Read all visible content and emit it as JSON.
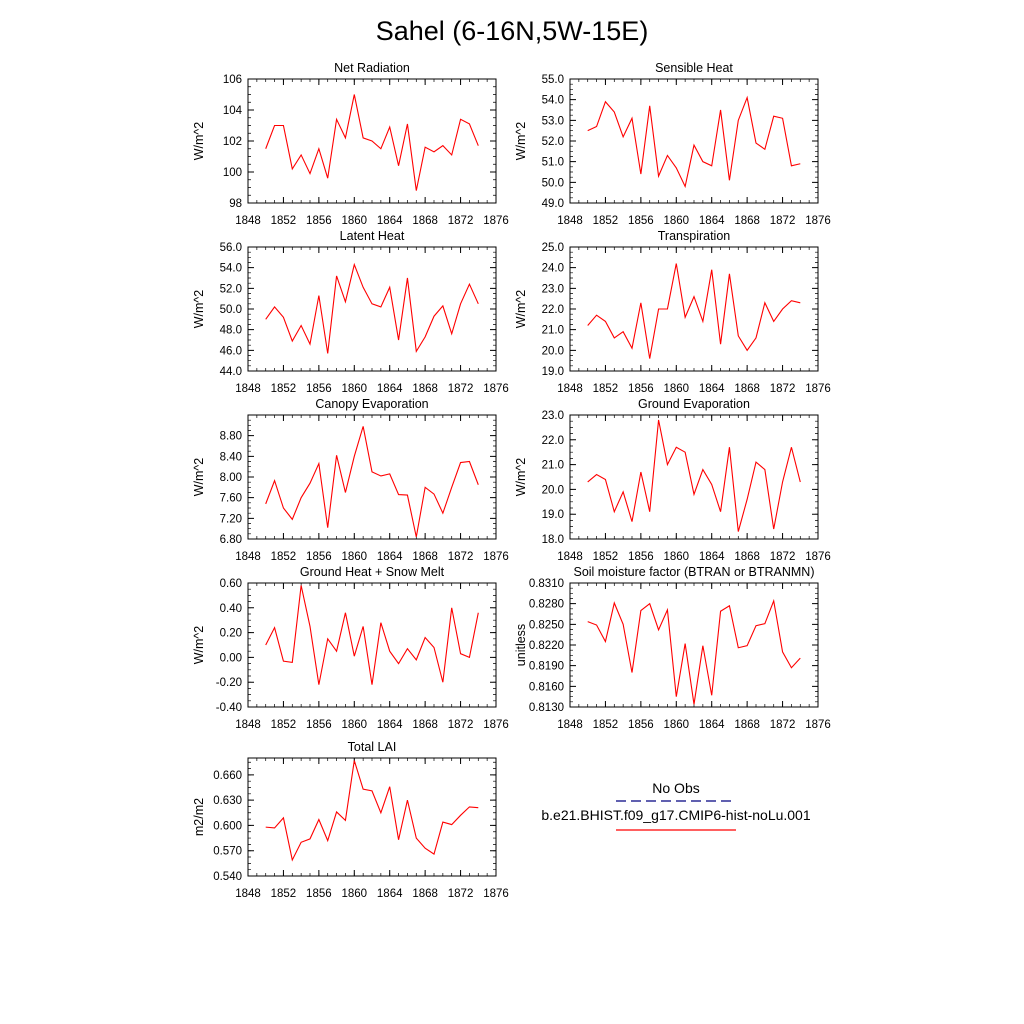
{
  "figure": {
    "title": "Sahel (6-16N,5W-15E)",
    "legend": {
      "obs_label": "No Obs",
      "obs_color": "#000080",
      "model_label": "b.e21.BHIST.f09_g17.CMIP6-hist-noLu.001",
      "model_color": "#ff0000"
    }
  },
  "chart_data": [
    {
      "type": "line",
      "title": "Net Radiation",
      "ylabel": "W/m^2",
      "xlim": [
        1848,
        1876
      ],
      "xticks": [
        1848,
        1852,
        1856,
        1860,
        1864,
        1868,
        1872,
        1876
      ],
      "ylim": [
        98,
        106
      ],
      "yticks": [
        "98",
        "100",
        "102",
        "104",
        "106"
      ],
      "series": [
        {
          "color": "#ff0000",
          "x": [
            1850,
            1851,
            1852,
            1853,
            1854,
            1855,
            1856,
            1857,
            1858,
            1859,
            1860,
            1861,
            1862,
            1863,
            1864,
            1865,
            1866,
            1867,
            1868,
            1869,
            1870,
            1871,
            1872,
            1873,
            1874
          ],
          "y": [
            101.5,
            103.0,
            103.0,
            100.2,
            101.1,
            99.9,
            101.5,
            99.6,
            103.4,
            102.2,
            105.0,
            102.2,
            102.0,
            101.5,
            102.9,
            100.4,
            103.1,
            98.8,
            101.6,
            101.3,
            101.7,
            101.1,
            103.4,
            103.1,
            101.7
          ]
        }
      ]
    },
    {
      "type": "line",
      "title": "Sensible Heat",
      "ylabel": "W/m^2",
      "xlim": [
        1848,
        1876
      ],
      "xticks": [
        1848,
        1852,
        1856,
        1860,
        1864,
        1868,
        1872,
        1876
      ],
      "ylim": [
        49,
        55
      ],
      "yticks": [
        "49.0",
        "50.0",
        "51.0",
        "52.0",
        "53.0",
        "54.0",
        "55.0"
      ],
      "series": [
        {
          "color": "#ff0000",
          "x": [
            1850,
            1851,
            1852,
            1853,
            1854,
            1855,
            1856,
            1857,
            1858,
            1859,
            1860,
            1861,
            1862,
            1863,
            1864,
            1865,
            1866,
            1867,
            1868,
            1869,
            1870,
            1871,
            1872,
            1873,
            1874
          ],
          "y": [
            52.5,
            52.7,
            53.9,
            53.4,
            52.2,
            53.1,
            50.4,
            53.7,
            50.3,
            51.3,
            50.7,
            49.8,
            51.8,
            51.0,
            50.8,
            53.5,
            50.1,
            53.0,
            54.1,
            51.9,
            51.6,
            53.2,
            53.1,
            50.8,
            50.9
          ]
        }
      ]
    },
    {
      "type": "line",
      "title": "Latent Heat",
      "ylabel": "W/m^2",
      "xlim": [
        1848,
        1876
      ],
      "xticks": [
        1848,
        1852,
        1856,
        1860,
        1864,
        1868,
        1872,
        1876
      ],
      "ylim": [
        44,
        56
      ],
      "yticks": [
        "44.0",
        "46.0",
        "48.0",
        "50.0",
        "52.0",
        "54.0",
        "56.0"
      ],
      "series": [
        {
          "color": "#ff0000",
          "x": [
            1850,
            1851,
            1852,
            1853,
            1854,
            1855,
            1856,
            1857,
            1858,
            1859,
            1860,
            1861,
            1862,
            1863,
            1864,
            1865,
            1866,
            1867,
            1868,
            1869,
            1870,
            1871,
            1872,
            1873,
            1874
          ],
          "y": [
            49.0,
            50.2,
            49.2,
            46.9,
            48.4,
            46.6,
            51.3,
            45.7,
            53.2,
            50.7,
            54.3,
            52.1,
            50.5,
            50.2,
            52.1,
            47.0,
            53.0,
            45.9,
            47.3,
            49.3,
            50.3,
            47.6,
            50.5,
            52.4,
            50.5
          ]
        }
      ]
    },
    {
      "type": "line",
      "title": "Transpiration",
      "ylabel": "W/m^2",
      "xlim": [
        1848,
        1876
      ],
      "xticks": [
        1848,
        1852,
        1856,
        1860,
        1864,
        1868,
        1872,
        1876
      ],
      "ylim": [
        19,
        25
      ],
      "yticks": [
        "19.0",
        "20.0",
        "21.0",
        "22.0",
        "23.0",
        "24.0",
        "25.0"
      ],
      "series": [
        {
          "color": "#ff0000",
          "x": [
            1850,
            1851,
            1852,
            1853,
            1854,
            1855,
            1856,
            1857,
            1858,
            1859,
            1860,
            1861,
            1862,
            1863,
            1864,
            1865,
            1866,
            1867,
            1868,
            1869,
            1870,
            1871,
            1872,
            1873,
            1874
          ],
          "y": [
            21.2,
            21.7,
            21.4,
            20.6,
            20.9,
            20.1,
            22.3,
            19.6,
            22.0,
            22.0,
            24.2,
            21.6,
            22.6,
            21.4,
            23.9,
            20.3,
            23.7,
            20.7,
            20.0,
            20.6,
            22.3,
            21.4,
            22.0,
            22.4,
            22.3
          ]
        }
      ]
    },
    {
      "type": "line",
      "title": "Canopy Evaporation",
      "ylabel": "W/m^2",
      "xlim": [
        1848,
        1876
      ],
      "xticks": [
        1848,
        1852,
        1856,
        1860,
        1864,
        1868,
        1872,
        1876
      ],
      "ylim": [
        6.8,
        9.2
      ],
      "yticks": [
        "6.80",
        "7.20",
        "7.60",
        "8.00",
        "8.40",
        "8.80"
      ],
      "series": [
        {
          "color": "#ff0000",
          "x": [
            1850,
            1851,
            1852,
            1853,
            1854,
            1855,
            1856,
            1857,
            1858,
            1859,
            1860,
            1861,
            1862,
            1863,
            1864,
            1865,
            1866,
            1867,
            1868,
            1869,
            1870,
            1871,
            1872,
            1873,
            1874
          ],
          "y": [
            7.48,
            7.93,
            7.4,
            7.18,
            7.6,
            7.88,
            8.26,
            7.02,
            8.42,
            7.7,
            8.4,
            8.98,
            8.1,
            8.02,
            8.06,
            7.66,
            7.65,
            6.84,
            7.8,
            7.67,
            7.3,
            7.8,
            8.28,
            8.3,
            7.85
          ]
        }
      ]
    },
    {
      "type": "line",
      "title": "Ground Evaporation",
      "ylabel": "W/m^2",
      "xlim": [
        1848,
        1876
      ],
      "xticks": [
        1848,
        1852,
        1856,
        1860,
        1864,
        1868,
        1872,
        1876
      ],
      "ylim": [
        18,
        23
      ],
      "yticks": [
        "18.0",
        "19.0",
        "20.0",
        "21.0",
        "22.0",
        "23.0"
      ],
      "series": [
        {
          "color": "#ff0000",
          "x": [
            1850,
            1851,
            1852,
            1853,
            1854,
            1855,
            1856,
            1857,
            1858,
            1859,
            1860,
            1861,
            1862,
            1863,
            1864,
            1865,
            1866,
            1867,
            1868,
            1869,
            1870,
            1871,
            1872,
            1873,
            1874
          ],
          "y": [
            20.3,
            20.6,
            20.4,
            19.1,
            19.9,
            18.7,
            20.7,
            19.1,
            22.8,
            21.0,
            21.7,
            21.5,
            19.8,
            20.8,
            20.2,
            19.1,
            21.7,
            18.3,
            19.6,
            21.1,
            20.8,
            18.4,
            20.3,
            21.7,
            20.3
          ]
        }
      ]
    },
    {
      "type": "line",
      "title": "Ground Heat + Snow Melt",
      "ylabel": "W/m^2",
      "xlim": [
        1848,
        1876
      ],
      "xticks": [
        1848,
        1852,
        1856,
        1860,
        1864,
        1868,
        1872,
        1876
      ],
      "ylim": [
        -0.4,
        0.6
      ],
      "yticks": [
        "-0.40",
        "-0.20",
        "0.00",
        "0.20",
        "0.40",
        "0.60"
      ],
      "series": [
        {
          "color": "#ff0000",
          "x": [
            1850,
            1851,
            1852,
            1853,
            1854,
            1855,
            1856,
            1857,
            1858,
            1859,
            1860,
            1861,
            1862,
            1863,
            1864,
            1865,
            1866,
            1867,
            1868,
            1869,
            1870,
            1871,
            1872,
            1873,
            1874
          ],
          "y": [
            0.1,
            0.24,
            -0.03,
            -0.04,
            0.58,
            0.25,
            -0.22,
            0.15,
            0.05,
            0.36,
            0.01,
            0.25,
            -0.22,
            0.28,
            0.05,
            -0.05,
            0.07,
            -0.02,
            0.16,
            0.08,
            -0.2,
            0.4,
            0.03,
            0.0,
            0.36
          ]
        }
      ]
    },
    {
      "type": "line",
      "title": "Soil moisture factor (BTRAN or BTRANMN)",
      "ylabel": "unitless",
      "xlim": [
        1848,
        1876
      ],
      "xticks": [
        1848,
        1852,
        1856,
        1860,
        1864,
        1868,
        1872,
        1876
      ],
      "ylim": [
        0.813,
        0.831
      ],
      "yticks": [
        "0.8130",
        "0.8160",
        "0.8190",
        "0.8220",
        "0.8250",
        "0.8280",
        "0.8310"
      ],
      "series": [
        {
          "color": "#ff0000",
          "x": [
            1850,
            1851,
            1852,
            1853,
            1854,
            1855,
            1856,
            1857,
            1858,
            1859,
            1860,
            1861,
            1862,
            1863,
            1864,
            1865,
            1866,
            1867,
            1868,
            1869,
            1870,
            1871,
            1872,
            1873,
            1874
          ],
          "y": [
            0.8254,
            0.8249,
            0.8225,
            0.8281,
            0.825,
            0.818,
            0.827,
            0.828,
            0.8242,
            0.8271,
            0.8145,
            0.8222,
            0.8134,
            0.8219,
            0.8147,
            0.8269,
            0.8277,
            0.8216,
            0.8219,
            0.8248,
            0.8251,
            0.8284,
            0.821,
            0.8187,
            0.8201
          ]
        }
      ]
    },
    {
      "type": "line",
      "title": "Total LAI",
      "ylabel": "m2/m2",
      "xlim": [
        1848,
        1876
      ],
      "xticks": [
        1848,
        1852,
        1856,
        1860,
        1864,
        1868,
        1872,
        1876
      ],
      "ylim": [
        0.54,
        0.68
      ],
      "yticks": [
        "0.540",
        "0.570",
        "0.600",
        "0.630",
        "0.660"
      ],
      "series": [
        {
          "color": "#ff0000",
          "x": [
            1850,
            1851,
            1852,
            1853,
            1854,
            1855,
            1856,
            1857,
            1858,
            1859,
            1860,
            1861,
            1862,
            1863,
            1864,
            1865,
            1866,
            1867,
            1868,
            1869,
            1870,
            1871,
            1872,
            1873,
            1874
          ],
          "y": [
            0.598,
            0.597,
            0.609,
            0.559,
            0.58,
            0.584,
            0.607,
            0.582,
            0.616,
            0.606,
            0.677,
            0.643,
            0.641,
            0.615,
            0.646,
            0.583,
            0.63,
            0.585,
            0.573,
            0.566,
            0.604,
            0.601,
            0.612,
            0.622,
            0.621
          ]
        }
      ]
    }
  ]
}
